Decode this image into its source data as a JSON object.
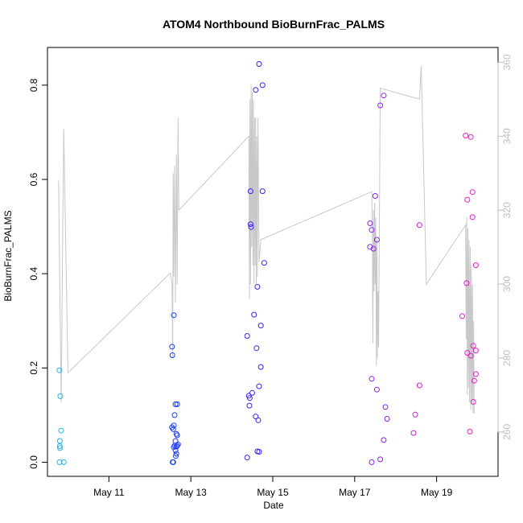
{
  "chart_data": {
    "type": "scatter",
    "title": "ATOM4 Northbound BioBurnFrac_PALMS",
    "xlabel": "Date",
    "ylabel": "BioBurnFrac_PALMS",
    "xlim": [
      "2018-05-09 12:00",
      "2018-05-20 12:00"
    ],
    "ylim": [
      -0.03,
      0.88
    ],
    "y2lim": [
      248,
      364
    ],
    "x_ticks": [
      {
        "label": "May 11",
        "value": "2018-05-11"
      },
      {
        "label": "May 13",
        "value": "2018-05-13"
      },
      {
        "label": "May 15",
        "value": "2018-05-15"
      },
      {
        "label": "May 17",
        "value": "2018-05-17"
      },
      {
        "label": "May 19",
        "value": "2018-05-19"
      }
    ],
    "y_ticks": [
      "0.0",
      "0.2",
      "0.4",
      "0.6",
      "0.8"
    ],
    "y2_ticks": [
      "260",
      "280",
      "300",
      "320",
      "340",
      "360"
    ],
    "colors": {
      "line": "#c8c8c8",
      "axis": "#000000",
      "right_axis": "#bdbdbd"
    },
    "series": [
      {
        "color": "#1cb4f0",
        "points": [
          [
            "2018-05-09 19:00",
            0.195
          ],
          [
            "2018-05-09 19:30",
            0.14
          ],
          [
            "2018-05-09 20:00",
            0.067
          ],
          [
            "2018-05-09 19:15",
            0.045
          ],
          [
            "2018-05-09 19:10",
            0.034
          ],
          [
            "2018-05-09 19:20",
            0.03
          ],
          [
            "2018-05-09 19:05",
            0.0
          ],
          [
            "2018-05-09 21:30",
            0.0
          ]
        ]
      },
      {
        "color": "#1a3cf0",
        "points": [
          [
            "2018-05-12 13:00",
            0.245
          ],
          [
            "2018-05-12 13:10",
            0.227
          ],
          [
            "2018-05-12 14:00",
            0.312
          ],
          [
            "2018-05-12 13:00",
            0.074
          ],
          [
            "2018-05-12 14:00",
            0.078
          ],
          [
            "2018-05-12 13:40",
            0.07
          ],
          [
            "2018-05-12 15:00",
            0.123
          ],
          [
            "2018-05-12 16:00",
            0.123
          ],
          [
            "2018-05-12 14:30",
            0.1
          ],
          [
            "2018-05-12 15:30",
            0.06
          ],
          [
            "2018-05-12 16:00",
            0.057
          ],
          [
            "2018-05-12 15:00",
            0.045
          ],
          [
            "2018-05-12 14:00",
            0.032
          ],
          [
            "2018-05-12 14:30",
            0.035
          ],
          [
            "2018-05-12 15:30",
            0.033
          ],
          [
            "2018-05-12 16:30",
            0.038
          ],
          [
            "2018-05-12 16:00",
            0.035
          ],
          [
            "2018-05-12 15:00",
            0.025
          ],
          [
            "2018-05-12 15:30",
            0.018
          ],
          [
            "2018-05-12 15:10",
            0.013
          ],
          [
            "2018-05-12 13:20",
            0.0
          ],
          [
            "2018-05-12 13:40",
            0.0
          ]
        ]
      },
      {
        "color": "#3c22ee",
        "points": [
          [
            "2018-05-14 16:00",
            0.845
          ],
          [
            "2018-05-14 18:00",
            0.8
          ],
          [
            "2018-05-14 14:00",
            0.79
          ],
          [
            "2018-05-14 11:00",
            0.575
          ],
          [
            "2018-05-14 18:00",
            0.575
          ],
          [
            "2018-05-14 11:00",
            0.505
          ],
          [
            "2018-05-14 11:15",
            0.499
          ],
          [
            "2018-05-14 19:00",
            0.423
          ],
          [
            "2018-05-14 15:00",
            0.372
          ],
          [
            "2018-05-14 13:00",
            0.313
          ],
          [
            "2018-05-14 17:00",
            0.29
          ],
          [
            "2018-05-14 9:00",
            0.268
          ],
          [
            "2018-05-14 14:30",
            0.242
          ],
          [
            "2018-05-14 17:00",
            0.202
          ],
          [
            "2018-05-14 16:00",
            0.161
          ],
          [
            "2018-05-14 12:00",
            0.147
          ],
          [
            "2018-05-14 10:00",
            0.141
          ],
          [
            "2018-05-14 10:30",
            0.136
          ],
          [
            "2018-05-14 10:20",
            0.12
          ],
          [
            "2018-05-14 14:00",
            0.097
          ],
          [
            "2018-05-14 15:30",
            0.089
          ],
          [
            "2018-05-14 15:00",
            0.023
          ],
          [
            "2018-05-14 16:00",
            0.022
          ],
          [
            "2018-05-14 9:00",
            0.01
          ]
        ]
      },
      {
        "color": "#8c22e8",
        "points": [
          [
            "2018-05-17 17:00",
            0.778
          ],
          [
            "2018-05-17 15:00",
            0.757
          ],
          [
            "2018-05-17 12:00",
            0.565
          ],
          [
            "2018-05-17 9:00",
            0.507
          ],
          [
            "2018-05-17 10:00",
            0.493
          ],
          [
            "2018-05-17 13:00",
            0.472
          ],
          [
            "2018-05-17 9:00",
            0.457
          ],
          [
            "2018-05-17 11:00",
            0.453
          ],
          [
            "2018-05-17 10:00",
            0.177
          ],
          [
            "2018-05-17 13:00",
            0.154
          ],
          [
            "2018-05-17 18:00",
            0.117
          ],
          [
            "2018-05-17 19:00",
            0.092
          ],
          [
            "2018-05-17 17:00",
            0.047
          ],
          [
            "2018-05-17 15:00",
            0.006
          ],
          [
            "2018-05-17 10:00",
            0.0
          ]
        ]
      },
      {
        "color": "#c81ec8",
        "points": [
          [
            "2018-05-18 14:00",
            0.503
          ],
          [
            "2018-05-18 14:00",
            0.163
          ],
          [
            "2018-05-18 11:30",
            0.101
          ],
          [
            "2018-05-18 10:30",
            0.062
          ]
        ]
      },
      {
        "color": "#e61ec8",
        "points": [
          [
            "2018-05-19 17:00",
            0.693
          ],
          [
            "2018-05-19 20:00",
            0.69
          ],
          [
            "2018-05-19 21:00",
            0.573
          ],
          [
            "2018-05-19 18:00",
            0.557
          ],
          [
            "2018-05-19 21:00",
            0.52
          ],
          [
            "2018-05-19 23:00",
            0.418
          ],
          [
            "2018-05-19 17:30",
            0.38
          ],
          [
            "2018-05-19 15:00",
            0.31
          ],
          [
            "2018-05-19 21:30",
            0.247
          ],
          [
            "2018-05-19 23:00",
            0.237
          ],
          [
            "2018-05-19 18:00",
            0.232
          ],
          [
            "2018-05-19 20:00",
            0.226
          ],
          [
            "2018-05-19 23:00",
            0.187
          ],
          [
            "2018-05-19 22:00",
            0.173
          ],
          [
            "2018-05-19 21:30",
            0.128
          ],
          [
            "2018-05-19 19:30",
            0.065
          ]
        ]
      }
    ],
    "line_y2": [
      [
        "2018-05-09 18:30",
        328
      ],
      [
        "2018-05-09 20:00",
        268
      ],
      [
        "2018-05-09 21:30",
        342
      ],
      [
        "2018-05-10 0:00",
        276
      ],
      [
        "2018-05-12 12:00",
        303
      ],
      [
        "2018-05-12 13:00",
        300
      ],
      [
        "2018-05-12 13:20",
        280
      ],
      [
        "2018-05-12 13:40",
        330
      ],
      [
        "2018-05-12 14:00",
        302
      ],
      [
        "2018-05-12 14:30",
        332
      ],
      [
        "2018-05-12 15:00",
        295
      ],
      [
        "2018-05-12 15:30",
        335
      ],
      [
        "2018-05-12 16:00",
        300
      ],
      [
        "2018-05-12 16:30",
        345
      ],
      [
        "2018-05-12 17:00",
        320
      ],
      [
        "2018-05-14 10:00",
        340
      ],
      [
        "2018-05-14 10:20",
        296
      ],
      [
        "2018-05-14 10:40",
        350
      ],
      [
        "2018-05-14 11:00",
        300
      ],
      [
        "2018-05-14 11:20",
        354
      ],
      [
        "2018-05-14 11:40",
        310
      ],
      [
        "2018-05-14 12:00",
        352
      ],
      [
        "2018-05-14 12:20",
        305
      ],
      [
        "2018-05-14 12:40",
        350
      ],
      [
        "2018-05-14 13:00",
        300
      ],
      [
        "2018-05-14 13:20",
        345
      ],
      [
        "2018-05-14 13:40",
        305
      ],
      [
        "2018-05-14 14:00",
        345
      ],
      [
        "2018-05-14 14:20",
        300
      ],
      [
        "2018-05-14 14:40",
        340
      ],
      [
        "2018-05-14 15:00",
        302
      ],
      [
        "2018-05-14 15:20",
        345
      ],
      [
        "2018-05-14 16:00",
        306
      ],
      [
        "2018-05-14 17:00",
        312
      ],
      [
        "2018-05-17 10:00",
        325
      ],
      [
        "2018-05-17 10:20",
        316
      ],
      [
        "2018-05-17 10:40",
        284
      ],
      [
        "2018-05-17 11:00",
        320
      ],
      [
        "2018-05-17 11:20",
        298
      ],
      [
        "2018-05-17 11:40",
        322
      ],
      [
        "2018-05-17 12:00",
        300
      ],
      [
        "2018-05-17 12:20",
        318
      ],
      [
        "2018-05-17 12:40",
        278
      ],
      [
        "2018-05-17 13:00",
        312
      ],
      [
        "2018-05-17 13:20",
        280
      ],
      [
        "2018-05-17 13:40",
        298
      ],
      [
        "2018-05-17 14:00",
        283
      ],
      [
        "2018-05-17 15:00",
        353
      ],
      [
        "2018-05-18 14:00",
        350
      ],
      [
        "2018-05-18 15:00",
        359
      ],
      [
        "2018-05-18 18:00",
        300
      ],
      [
        "2018-05-19 17:00",
        316
      ],
      [
        "2018-05-19 17:20",
        285
      ],
      [
        "2018-05-19 17:40",
        318
      ],
      [
        "2018-05-19 18:00",
        270
      ],
      [
        "2018-05-19 18:20",
        315
      ],
      [
        "2018-05-19 18:40",
        272
      ],
      [
        "2018-05-19 19:00",
        312
      ],
      [
        "2018-05-19 19:20",
        268
      ],
      [
        "2018-05-19 19:40",
        310
      ],
      [
        "2018-05-19 20:00",
        266
      ],
      [
        "2018-05-19 20:20",
        305
      ],
      [
        "2018-05-19 20:40",
        268
      ],
      [
        "2018-05-19 21:00",
        300
      ],
      [
        "2018-05-19 21:20",
        265
      ],
      [
        "2018-05-19 21:40",
        290
      ],
      [
        "2018-05-19 22:00",
        265
      ]
    ]
  }
}
